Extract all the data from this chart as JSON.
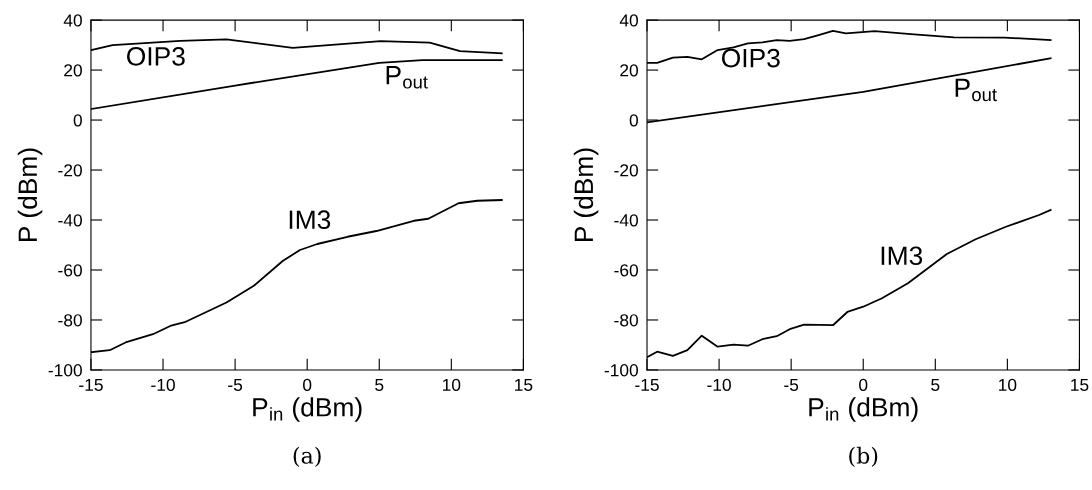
{
  "chart_data": [
    {
      "type": "line",
      "xlabel": "P$_{in}$ (dBm)",
      "ylabel": "P (dBm)",
      "xlim": [
        -15,
        15
      ],
      "ylim": [
        -100,
        40
      ],
      "xticks": [
        -15,
        -10,
        -5,
        0,
        5,
        10,
        15
      ],
      "yticks": [
        -100,
        -80,
        -60,
        -40,
        -20,
        0,
        20,
        40
      ],
      "grid": false,
      "series": [
        {
          "name": "OIP3",
          "color": "#000000",
          "x": [
            -15,
            -13.5,
            -8.8,
            -5.6,
            -1,
            5.1,
            8.5,
            10.6,
            13.5
          ],
          "values": [
            28,
            30,
            31.7,
            32.3,
            28.9,
            31.6,
            31,
            27.6,
            26.7
          ]
        },
        {
          "name": "P$_{out}$",
          "color": "#000000",
          "x": [
            -15,
            -5,
            5,
            8,
            10,
            13.5
          ],
          "values": [
            4.4,
            13.8,
            22.9,
            24,
            24,
            24
          ]
        },
        {
          "name": "IM3",
          "color": "#000000",
          "x": [
            -15,
            -13.7,
            -12.6,
            -10.7,
            -9.5,
            -8.5,
            -5.6,
            -3.7,
            -1.7,
            -0.5,
            0.7,
            2.8,
            4.8,
            7.4,
            8.4,
            10.5,
            11.8,
            13.5
          ],
          "values": [
            -92.9,
            -92.1,
            -89,
            -85.7,
            -82.4,
            -80.9,
            -73,
            -66.3,
            -56.4,
            -52,
            -49.6,
            -46.7,
            -44.4,
            -40.3,
            -39.5,
            -33.3,
            -32.3,
            -32
          ]
        }
      ],
      "annotations": [
        "(a)"
      ]
    },
    {
      "type": "line",
      "xlabel": "P$_{in}$ (dBm)",
      "ylabel": "P (dBm)",
      "xlim": [
        -15,
        15
      ],
      "ylim": [
        -100,
        40
      ],
      "xticks": [
        -15,
        -10,
        -5,
        0,
        5,
        10,
        15
      ],
      "yticks": [
        -100,
        -80,
        -60,
        -40,
        -20,
        0,
        20,
        40
      ],
      "grid": false,
      "series": [
        {
          "name": "OIP3",
          "color": "#000000",
          "x": [
            -15,
            -14.3,
            -13.2,
            -12.2,
            -11.2,
            -10.1,
            -9,
            -8,
            -7,
            -6,
            -5.1,
            -4.1,
            -3.1,
            -2.1,
            -1.2,
            0.8,
            3.3,
            6.3,
            9.8,
            13
          ],
          "values": [
            22.9,
            22.9,
            25,
            25.3,
            24.3,
            28,
            29.1,
            30.7,
            31.1,
            32,
            31.7,
            32.4,
            34,
            35.7,
            34.7,
            35.6,
            34.4,
            33.1,
            33,
            32
          ]
        },
        {
          "name": "P$_{out}$",
          "color": "#000000",
          "x": [
            -15,
            0,
            13
          ],
          "values": [
            -0.9,
            11.3,
            24.7
          ]
        },
        {
          "name": "IM3",
          "color": "#000000",
          "x": [
            -15,
            -14.3,
            -13.2,
            -12.2,
            -11.2,
            -10.1,
            -9,
            -8,
            -7,
            -6,
            -5.1,
            -4.1,
            -2.1,
            -1.1,
            0,
            1.3,
            3.1,
            5.8,
            7.8,
            9.9,
            12.2,
            13
          ],
          "values": [
            -94.9,
            -92.7,
            -94.4,
            -92.1,
            -86.3,
            -90.7,
            -89.9,
            -90.3,
            -87.7,
            -86.5,
            -83.7,
            -81.9,
            -82.1,
            -76.8,
            -74.7,
            -71.3,
            -65.3,
            -53.6,
            -47.7,
            -42.7,
            -38,
            -36
          ]
        }
      ],
      "annotations": [
        "(b)"
      ]
    }
  ]
}
